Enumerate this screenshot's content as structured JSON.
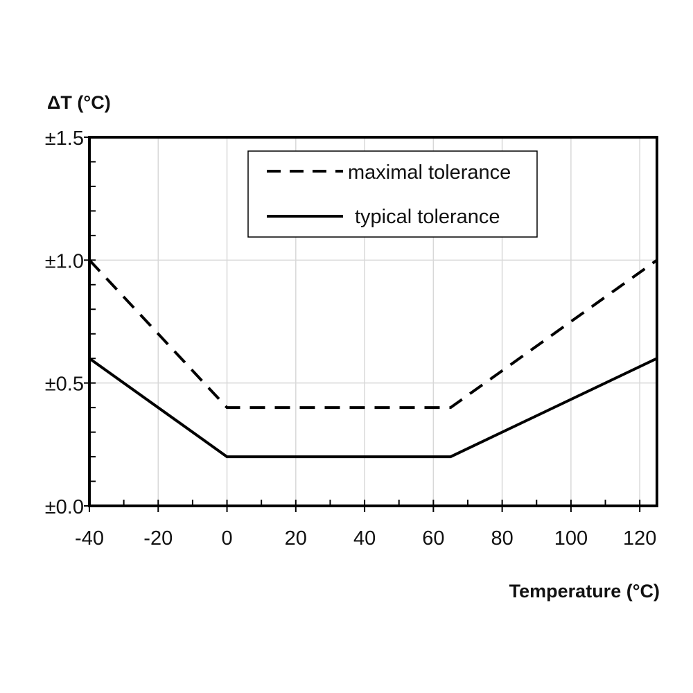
{
  "chart_data": {
    "type": "line",
    "title": "",
    "ylabel": "ΔT (°C)",
    "xlabel": "Temperature (°C)",
    "xlim": [
      -40,
      125
    ],
    "ylim": [
      0,
      1.5
    ],
    "x_ticks": [
      -40,
      -20,
      0,
      20,
      40,
      60,
      80,
      100,
      120
    ],
    "x_tick_labels": [
      "-40",
      "-20",
      "0",
      "20",
      "40",
      "60",
      "80",
      "100",
      "120"
    ],
    "y_ticks": [
      0,
      0.5,
      1.0,
      1.5
    ],
    "y_tick_labels": [
      "±0.0",
      "±0.5",
      "±1.0",
      "±1.5"
    ],
    "grid": true,
    "legend_position": "top-center",
    "series": [
      {
        "name": "maximal tolerance",
        "style": "dashed",
        "color": "#000000",
        "x": [
          -40,
          0,
          65,
          125
        ],
        "y": [
          1.0,
          0.4,
          0.4,
          1.0
        ]
      },
      {
        "name": "typical tolerance",
        "style": "solid",
        "color": "#000000",
        "x": [
          -40,
          0,
          65,
          125
        ],
        "y": [
          0.6,
          0.2,
          0.2,
          0.6
        ]
      }
    ]
  }
}
